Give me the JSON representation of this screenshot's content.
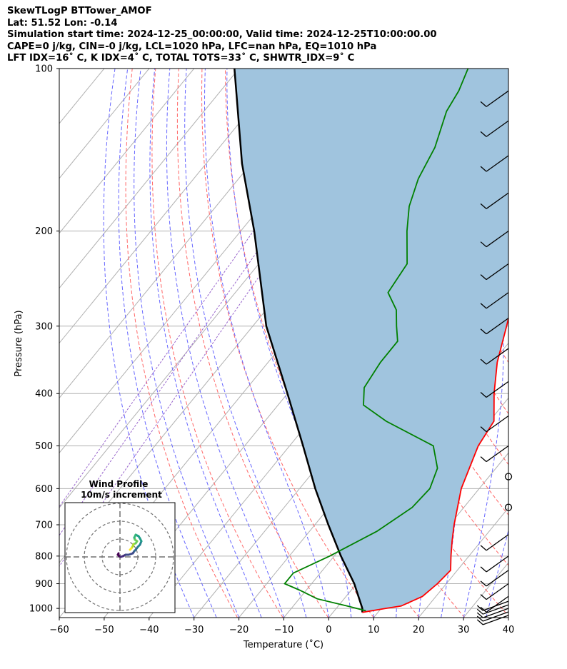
{
  "header": {
    "line1": "SkewTLogP BTTower_AMOF",
    "line2": "Lat: 51.52   Lon: -0.14",
    "line3": "Simulation start time: 2024-12-25_00:00:00, Valid time: 2024-12-25T10:00:00.00",
    "line4": "CAPE=0 j/kg, CIN=-0 j/kg, LCL=1020 hPa, LFC=nan hPa, EQ=1010 hPa",
    "line5": "LFT IDX=16˚ C, K IDX=4˚ C, TOTAL TOTS=33˚ C, SHWTR_IDX=9˚ C"
  },
  "chart_data": {
    "type": "line",
    "subtype": "skew-T log-P",
    "xlabel": "Temperature (˚C)",
    "ylabel": "Pressure (hPa)",
    "xlim": [
      -60,
      40
    ],
    "ylim": [
      1040,
      100
    ],
    "x_ticks": [
      "−60",
      "−50",
      "−40",
      "−30",
      "−20",
      "−10",
      "0",
      "10",
      "20",
      "30",
      "40"
    ],
    "y_ticks": [
      "100",
      "200",
      "300",
      "400",
      "500",
      "600",
      "700",
      "800",
      "900",
      "1000"
    ],
    "grid": true,
    "colors": {
      "temperature": "#ff0000",
      "dewpoint": "#008000",
      "parcel": "#000000",
      "shading": "#a0c4de",
      "dry_adiabats": "#ff6666",
      "moist_adiabats": "#6666ff",
      "mixing_ratio": "#9966cc",
      "isotherms": "#b0b0b0"
    },
    "temperature": [
      [
        1017,
        6.5
      ],
      [
        1000,
        11.0
      ],
      [
        990,
        14.0
      ],
      [
        950,
        17.0
      ],
      [
        900,
        18.0
      ],
      [
        850,
        18.5
      ],
      [
        800,
        16.0
      ],
      [
        750,
        13.5
      ],
      [
        700,
        11.0
      ],
      [
        600,
        6.0
      ],
      [
        500,
        2.0
      ],
      [
        450,
        1.0
      ],
      [
        400,
        -4.0
      ],
      [
        350,
        -9.0
      ],
      [
        300,
        -13.5
      ],
      [
        250,
        -19.0
      ],
      [
        230,
        -21.5
      ],
      [
        200,
        -26.0
      ],
      [
        180,
        -32.0
      ],
      [
        165,
        -38.0
      ],
      [
        150,
        -42.0
      ],
      [
        130,
        -47.0
      ],
      [
        100,
        -55.0
      ]
    ],
    "dewpoint": [
      [
        1010,
        7.0
      ],
      [
        990,
        2.0
      ],
      [
        960,
        -6.0
      ],
      [
        925,
        -11.5
      ],
      [
        900,
        -16.0
      ],
      [
        860,
        -16.0
      ],
      [
        800,
        -11.0
      ],
      [
        720,
        -5.0
      ],
      [
        650,
        -1.5
      ],
      [
        600,
        -1.0
      ],
      [
        550,
        -3.0
      ],
      [
        500,
        -8.0
      ],
      [
        450,
        -23.0
      ],
      [
        420,
        -31.0
      ],
      [
        390,
        -34.0
      ],
      [
        350,
        -35.0
      ],
      [
        320,
        -35.0
      ],
      [
        300,
        -38.0
      ],
      [
        280,
        -41.0
      ],
      [
        260,
        -46.0
      ],
      [
        230,
        -47.0
      ],
      [
        200,
        -53.0
      ],
      [
        180,
        -57.0
      ],
      [
        160,
        -60.0
      ],
      [
        140,
        -62.0
      ],
      [
        120,
        -66.0
      ],
      [
        110,
        -67.0
      ],
      [
        100,
        -69.0
      ]
    ],
    "parcel": [
      [
        1017,
        6.5
      ],
      [
        1000,
        5.8
      ],
      [
        900,
        -0.5
      ],
      [
        800,
        -8.5
      ],
      [
        700,
        -17.0
      ],
      [
        600,
        -26.5
      ],
      [
        500,
        -37.0
      ],
      [
        400,
        -50.0
      ],
      [
        300,
        -67.0
      ],
      [
        200,
        -87.0
      ],
      [
        150,
        -102.0
      ],
      [
        100,
        -121.0
      ]
    ],
    "wind_barbs_hPa": [
      1030,
      1015,
      1000,
      985,
      970,
      950,
      900,
      850,
      800,
      730,
      650,
      570,
      500,
      440,
      380,
      330,
      290,
      260,
      230,
      200,
      170,
      145,
      125,
      110
    ],
    "wind_profile_inset": {
      "title": "Wind Profile",
      "subtitle": "10m/s increment",
      "rings_ms": [
        10,
        20,
        30
      ]
    }
  }
}
